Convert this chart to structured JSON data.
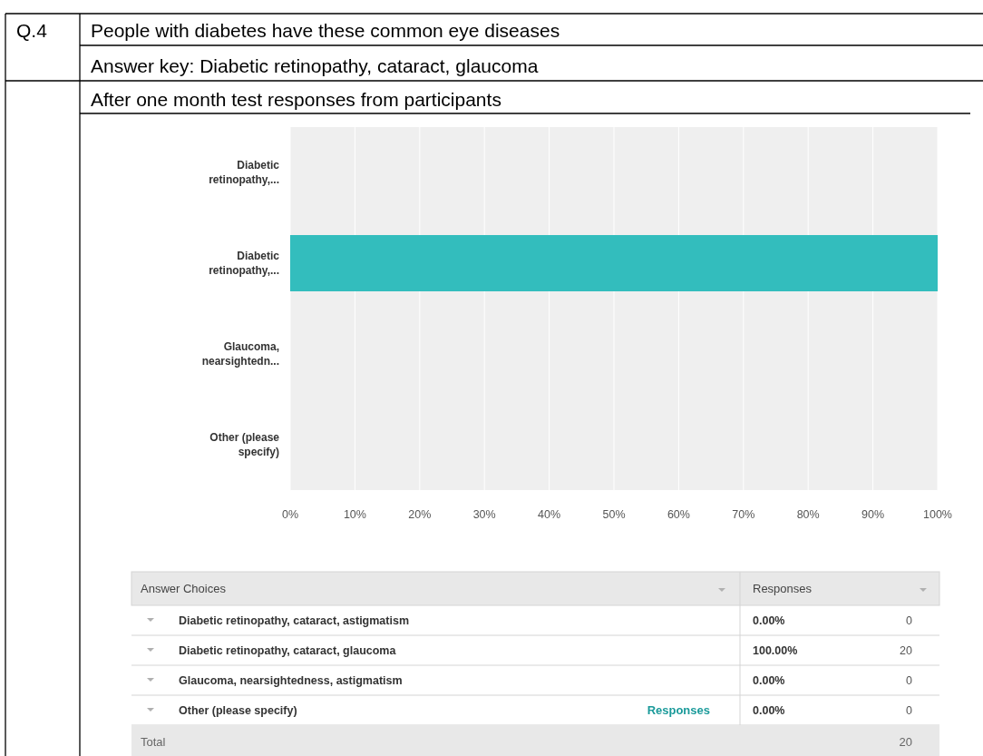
{
  "chart_data": {
    "type": "bar",
    "orientation": "horizontal",
    "title": "People with diabetes have these common eye diseases",
    "subtitle": "Answer key: Diabetic retinopathy, cataract, glaucoma",
    "categories": [
      "Diabetic retinopathy,...",
      "Diabetic retinopathy,...",
      "Glaucoma, nearsightedn...",
      "Other (please specify)"
    ],
    "values": [
      0,
      100,
      0,
      0
    ],
    "color": "#33bdbd",
    "xlim": [
      0,
      100
    ],
    "xticks": [
      {
        "value": 0,
        "label": "0%"
      },
      {
        "value": 10,
        "label": "10%"
      },
      {
        "value": 20,
        "label": "20%"
      },
      {
        "value": 30,
        "label": "30%"
      },
      {
        "value": 40,
        "label": "40%"
      },
      {
        "value": 50,
        "label": "50%"
      },
      {
        "value": 60,
        "label": "60%"
      },
      {
        "value": 70,
        "label": "70%"
      },
      {
        "value": 80,
        "label": "80%"
      },
      {
        "value": 90,
        "label": "90%"
      },
      {
        "value": 100,
        "label": "100%"
      }
    ],
    "grid": "x",
    "annotations": [
      "Q.4",
      "After one month test responses from participants",
      "Answer Choices",
      "Responses",
      "Diabetic retinopathy, cataract, astigmatism",
      "Diabetic retinopathy, cataract, glaucoma",
      "Glaucoma, nearsightedness, astigmatism",
      "Other (please specify)",
      "Responses",
      "0",
      "20",
      "0",
      "0",
      "Total",
      "20",
      "0.00%",
      "100.00%",
      "0.00%",
      "0.00%"
    ]
  }
}
